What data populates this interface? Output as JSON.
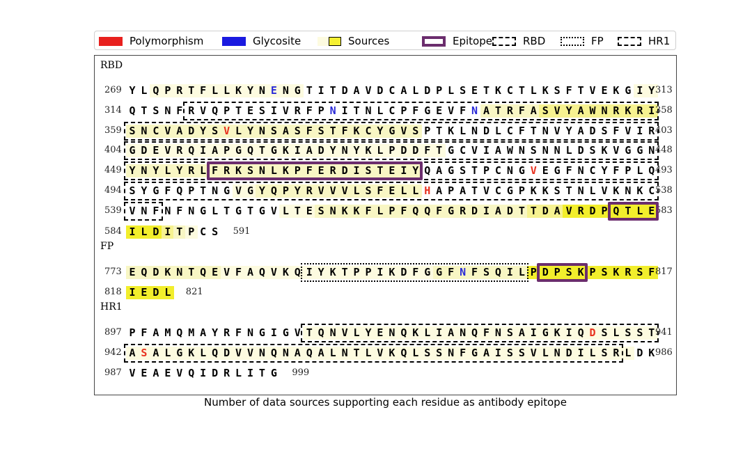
{
  "legend": [
    {
      "label": "Polymorphism",
      "kind": "fill",
      "color": "#e8201e"
    },
    {
      "label": "Glycosite",
      "kind": "fill",
      "color": "#1a1ae0"
    },
    {
      "label": "Sources",
      "kind": "sources",
      "color": "#f5f032"
    },
    {
      "label": "Epitope",
      "kind": "epitope",
      "color": "#6b2d6d"
    },
    {
      "label": "RBD",
      "kind": "dashed",
      "color": "#000000"
    },
    {
      "label": "FP",
      "kind": "dotted",
      "color": "#000000"
    },
    {
      "label": "HR1",
      "kind": "dashdot",
      "color": "#000000"
    }
  ],
  "caption": "Number of data sources supporting each residue as antibody epitope",
  "colors": {
    "polymorphism": "#e8301e",
    "glycosite": "#2a2ad8",
    "epitope": "#6b2d6d",
    "source_high": "#f2ee2c"
  },
  "sections": [
    {
      "label": "RBD",
      "rows": [
        {
          "start": "269",
          "end": "313",
          "seq": "YLQPRTFLLKYNENGTITDAVDCALDPLSETKCTLKSFTVEKGIY",
          "levels": "0011111111111110000000000000000000000000000111"
        },
        {
          "start": "314",
          "end": "358",
          "seq": "QTSNFRVQPTESIVRFPNITNLCPFGEVFNATRFASVYAWNRKRI",
          "levels": "000000000000000000000000000000222223333333333"
        },
        {
          "start": "359",
          "end": "403",
          "seq": "SNCVADYSVLYNSASFSTFKCYGVSPTKLNDLCFTNVYADSFVIR",
          "levels": "222222222222222222222222200000000000000000000"
        },
        {
          "start": "404",
          "end": "448",
          "seq": "GDEVRQIAPGQTGKIADYNYKLPDDFTGCVIAWNSNNLDSKVGGN",
          "levels": "111111111111111111111111111000000000000000000"
        },
        {
          "start": "449",
          "end": "493",
          "seq": "YNYLYRLFRKSNLKPFERDISTEIYQAGSTPCNGVEGFNCYFPLQ",
          "levels": "222222222222222222222222200000000000000000000"
        },
        {
          "start": "494",
          "end": "538",
          "seq": "SYGFQPTNGVGYQPYRVVVLSFELLHAPATVCGPKKSTNLVKNKC",
          "levels": "000000000112222222222222200000000000000000000"
        },
        {
          "start": "539",
          "end": "583",
          "seq": "VNFNFNGLTGTGVLTESNKKFLPFQQFGRDIADTTDAVRDPQTLE",
          "levels": "000000000000011122222222222222222233344444444"
        },
        {
          "start": "584",
          "end": "591",
          "seq": "ILDITPCS",
          "levels": "44432100"
        }
      ]
    },
    {
      "label": "FP",
      "rows": [
        {
          "start": "773",
          "end": "817",
          "seq": "EQDKNTQEVFAQVKQIYKTPPIKDFGGFNFSQILPDPSKPSKRSF",
          "levels": "222222221111111111111111112222222244444444444"
        },
        {
          "start": "818",
          "end": "821",
          "seq": "IEDL",
          "levels": "4444"
        }
      ]
    },
    {
      "label": "HR1",
      "rows": [
        {
          "start": "897",
          "end": "941",
          "seq": "PFAMQMAYRFNGIGVTQNVLYENQKLIANQFNSAIGKIQDSLSST",
          "levels": "000000000000000111111111111111111111111111111"
        },
        {
          "start": "942",
          "end": "986",
          "seq": "ASALGKLQDVVNQNAQALNTLVKQLSSNFGAISSVLNDILSRLDK",
          "levels": "111111111111111111111111111111111111111111100"
        },
        {
          "start": "987",
          "end": "999",
          "seq": "VEAEVQIDRLITG",
          "levels": "0000000000000"
        }
      ]
    }
  ]
}
